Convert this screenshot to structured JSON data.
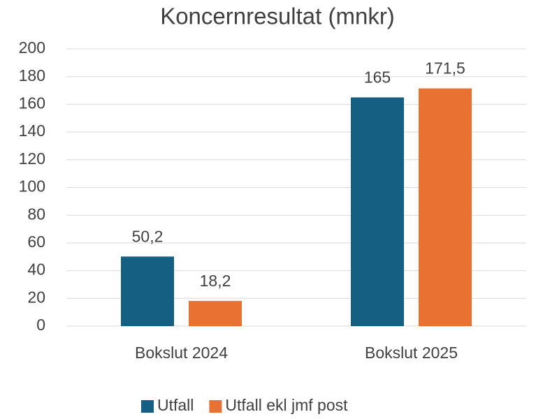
{
  "chart_data": {
    "type": "bar",
    "title": "Koncernresultat (mnkr)",
    "categories": [
      "Bokslut 2024",
      "Bokslut 2025"
    ],
    "series": [
      {
        "name": "Utfall",
        "color": "#156082",
        "values": [
          50.2,
          165
        ],
        "value_labels": [
          "50,2",
          "165"
        ]
      },
      {
        "name": "Utfall ekl jmf post",
        "color": "#e97132",
        "values": [
          18.2,
          171.5
        ],
        "value_labels": [
          "18,2",
          "171,5"
        ]
      }
    ],
    "ylim": [
      0,
      200
    ],
    "yticks": [
      0,
      20,
      40,
      60,
      80,
      100,
      120,
      140,
      160,
      180,
      200
    ],
    "grid": true,
    "legend": "bottom"
  }
}
